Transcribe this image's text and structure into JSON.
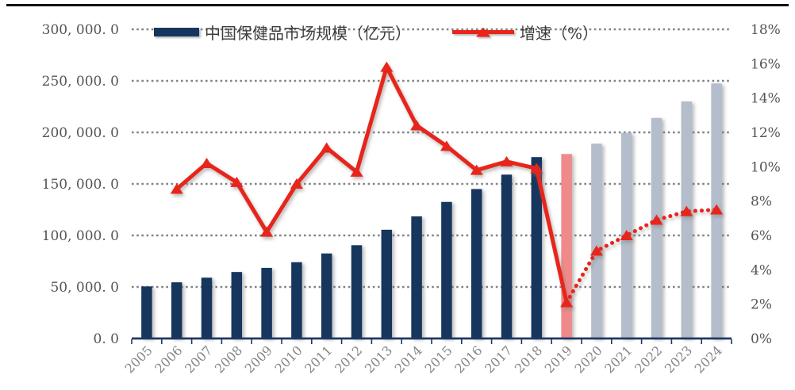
{
  "legend": {
    "bar_label": "中国保健品市场规模（亿元）",
    "line_label": "增速（%）"
  },
  "colors": {
    "bar_historical": "#17365D",
    "bar_2019": "#F08A8A",
    "bar_forecast": "#B4BDCB",
    "line": "#E8251B",
    "gridline": "#828282",
    "axis": "#1F3864",
    "axis_label": "#545454",
    "year_label": "#858585",
    "legend_text": "#3c3c3c",
    "top_rule": "#111111"
  },
  "chart_data": {
    "type": "bar+line combo",
    "categories": [
      "2005",
      "2006",
      "2007",
      "2008",
      "2009",
      "2010",
      "2011",
      "2012",
      "2013",
      "2014",
      "2015",
      "2016",
      "2017",
      "2018",
      "2019",
      "2020",
      "2021",
      "2022",
      "2023",
      "2024"
    ],
    "series": [
      {
        "name": "中国保健品市场规模（亿元）",
        "type": "bar",
        "axis": "left",
        "values": [
          50500,
          54500,
          59000,
          64500,
          68500,
          74000,
          82500,
          90500,
          105500,
          118500,
          132500,
          145000,
          159000,
          176000,
          179000,
          189000,
          199500,
          214000,
          230000,
          247500
        ],
        "color_roles": [
          "bar_historical",
          "bar_historical",
          "bar_historical",
          "bar_historical",
          "bar_historical",
          "bar_historical",
          "bar_historical",
          "bar_historical",
          "bar_historical",
          "bar_historical",
          "bar_historical",
          "bar_historical",
          "bar_historical",
          "bar_historical",
          "bar_2019",
          "bar_forecast",
          "bar_forecast",
          "bar_forecast",
          "bar_forecast",
          "bar_forecast"
        ]
      },
      {
        "name": "增速（%）",
        "type": "line",
        "axis": "right",
        "marker": "triangle",
        "values": [
          null,
          8.7,
          10.2,
          9.1,
          6.2,
          9.0,
          11.1,
          9.7,
          15.8,
          12.4,
          11.2,
          9.8,
          10.3,
          9.9,
          2.1,
          5.1,
          6.0,
          6.9,
          7.4,
          7.5
        ],
        "solid_segment": [
          "2006",
          "2019"
        ],
        "dotted_segment": [
          "2019",
          "2024"
        ]
      }
    ],
    "left_axis": {
      "min": 0,
      "max": 300000,
      "step": 50000,
      "labels": [
        "0. 0",
        "50, 000. 0",
        "100, 000. 0",
        "150, 000. 0",
        "200, 000. 0",
        "250, 000. 0",
        "300, 000. 0"
      ]
    },
    "right_axis": {
      "min": 0,
      "max": 18,
      "step": 2,
      "labels": [
        "0%",
        "2%",
        "4%",
        "6%",
        "8%",
        "10%",
        "12%",
        "14%",
        "16%",
        "18%"
      ]
    },
    "grid": {
      "show": true,
      "style": "dotted",
      "at_left_values": [
        50000,
        100000,
        150000,
        200000,
        250000,
        300000
      ]
    },
    "legend_position": "top"
  }
}
